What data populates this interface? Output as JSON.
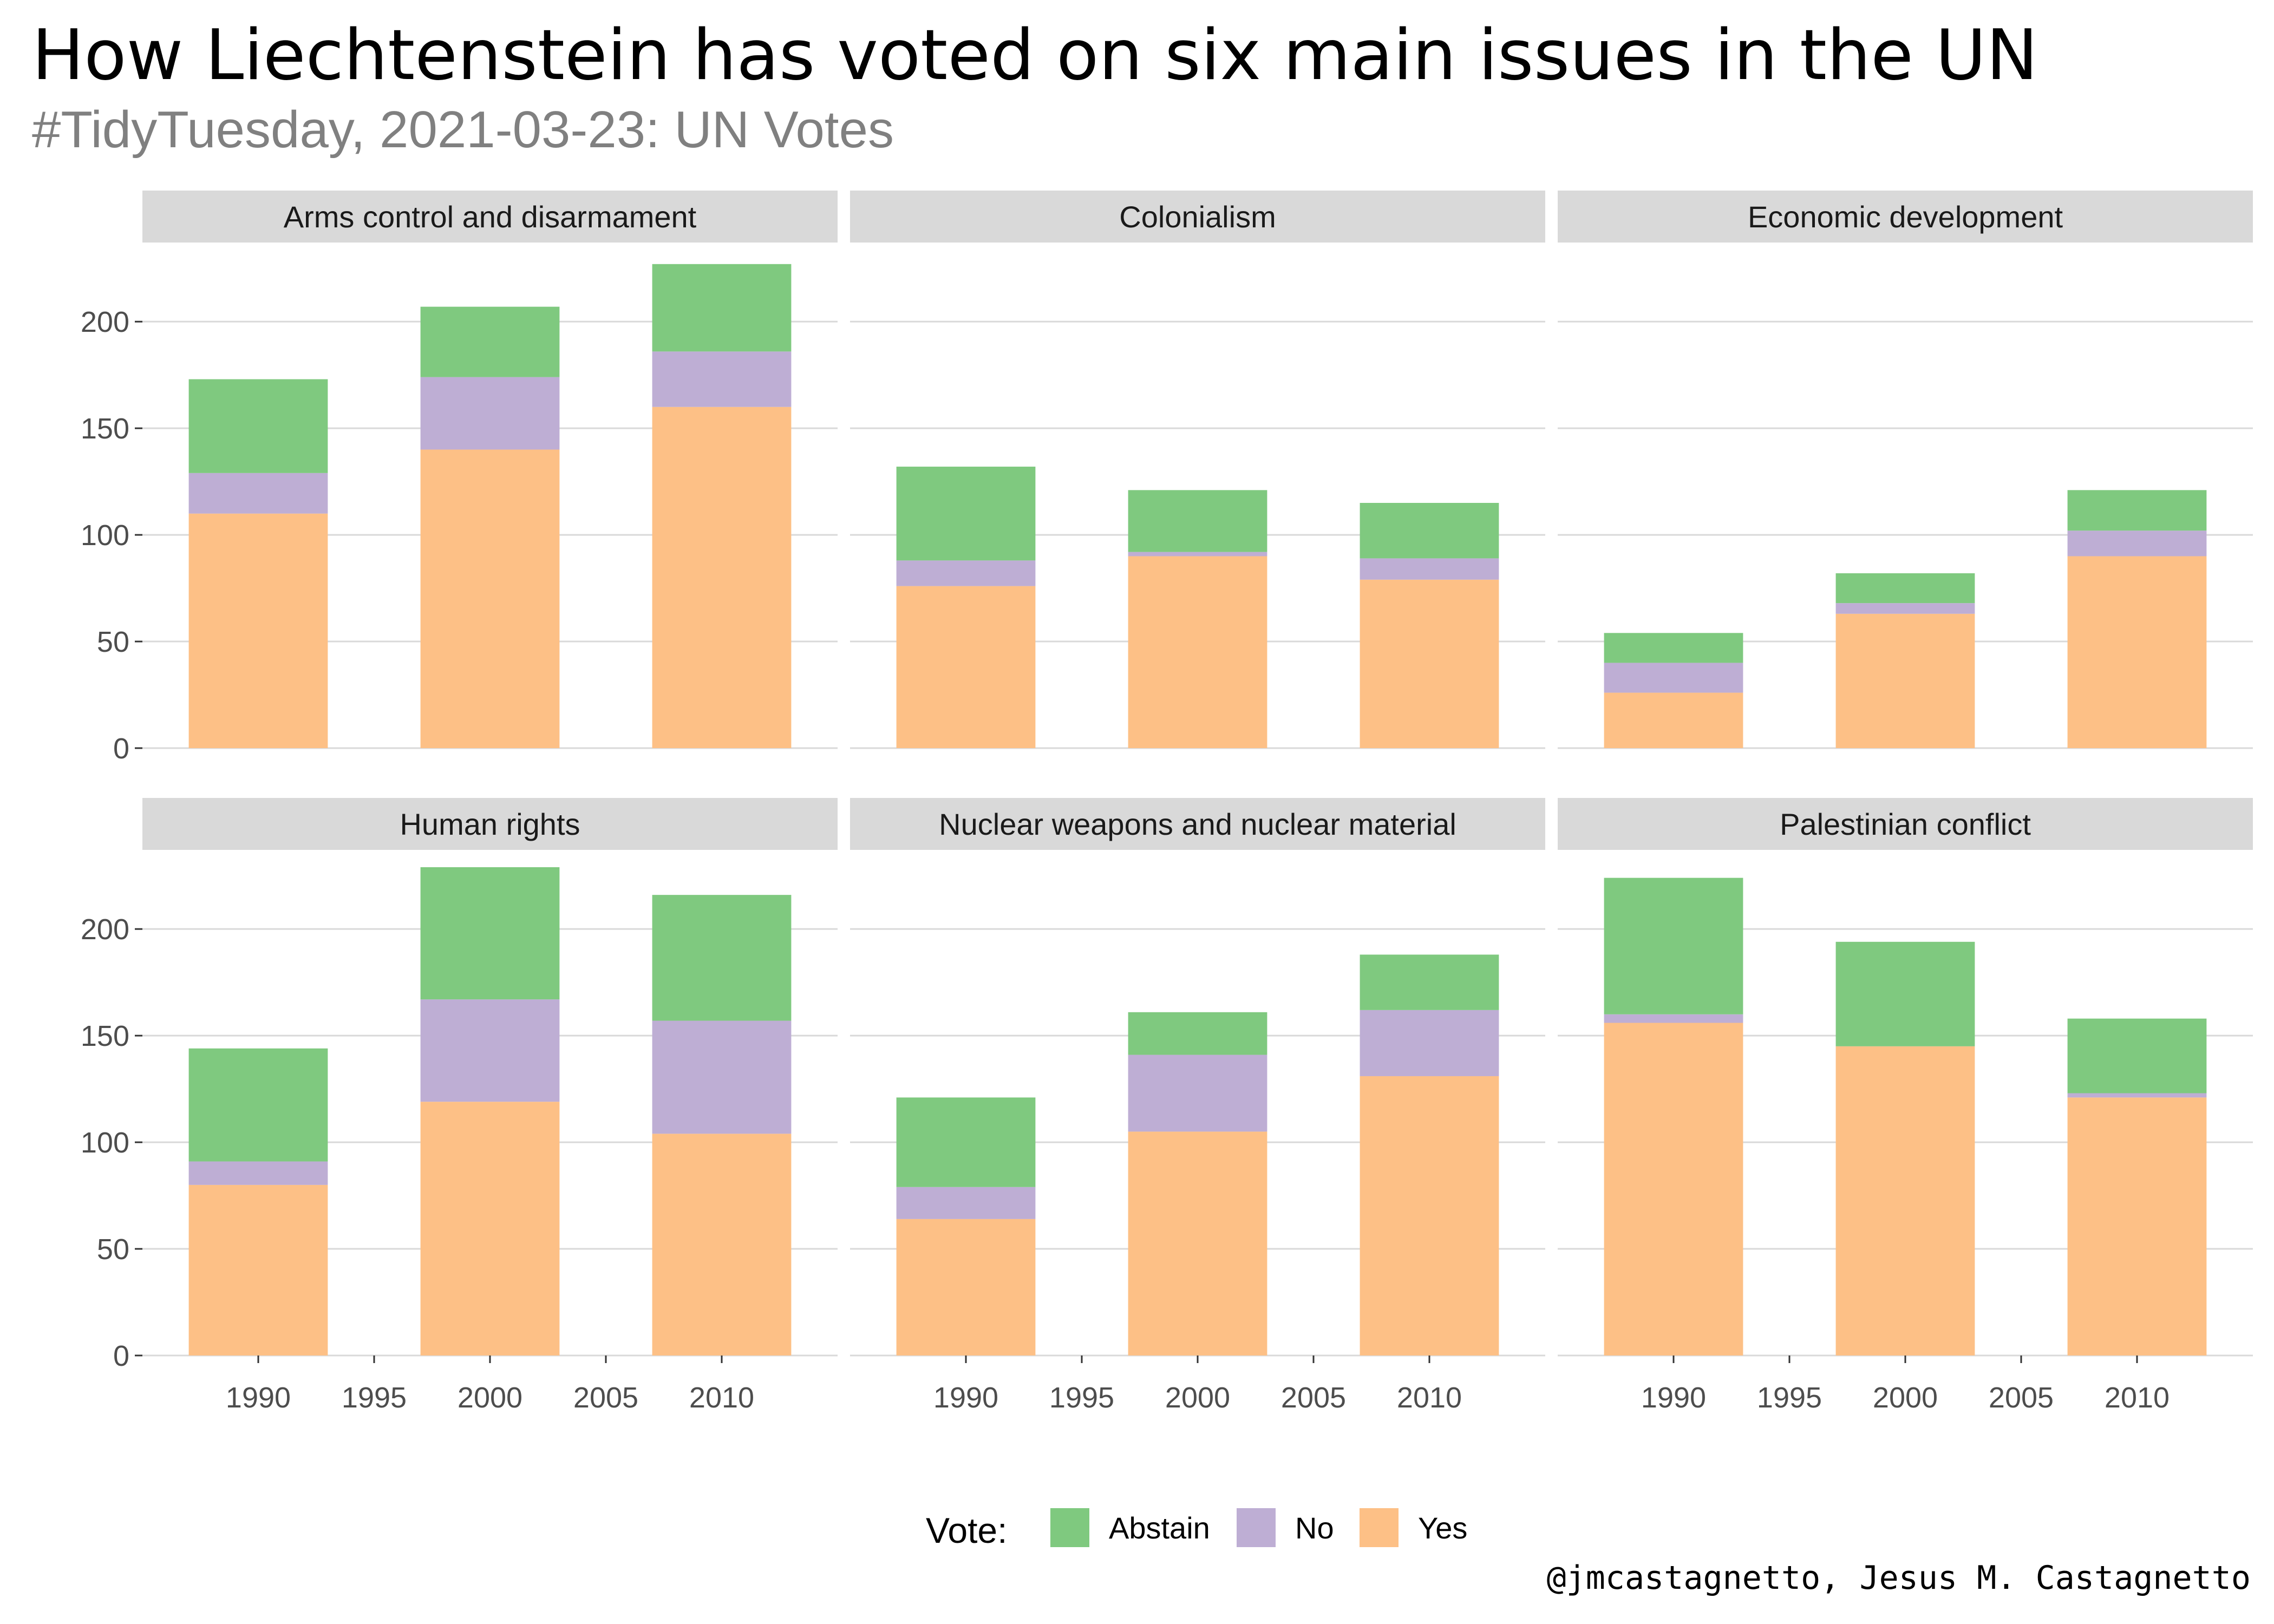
{
  "title": "How Liechtenstein has voted on six main issues in the UN",
  "subtitle": "#TidyTuesday, 2021-03-23: UN Votes",
  "caption": "@jmcastagnetto, Jesus M. Castagnetto",
  "colors": {
    "Abstain": "#7fc97f",
    "No": "#beaed4",
    "Yes": "#fdc086",
    "strip": "#d9d9d9",
    "grid": "#d9d9d9"
  },
  "chart_data": {
    "type": "bar",
    "stacked": true,
    "x_ticks": [
      1990,
      1995,
      2000,
      2005,
      2010
    ],
    "xlim": [
      1985,
      2015
    ],
    "ylim": [
      0,
      230
    ],
    "y_ticks": [
      0,
      50,
      100,
      150,
      200
    ],
    "legend": {
      "title": "Vote:",
      "position": "bottom",
      "entries": [
        "Abstain",
        "No",
        "Yes"
      ]
    },
    "grid": true,
    "panels": [
      {
        "title": "Arms control and disarmament",
        "x": [
          1990,
          2000,
          2010
        ],
        "series": [
          {
            "name": "Yes",
            "values": [
              110,
              140,
              160
            ]
          },
          {
            "name": "No",
            "values": [
              19,
              34,
              26
            ]
          },
          {
            "name": "Abstain",
            "values": [
              44,
              33,
              41
            ]
          }
        ]
      },
      {
        "title": "Colonialism",
        "x": [
          1990,
          2000,
          2010
        ],
        "series": [
          {
            "name": "Yes",
            "values": [
              76,
              90,
              79
            ]
          },
          {
            "name": "No",
            "values": [
              12,
              2,
              10
            ]
          },
          {
            "name": "Abstain",
            "values": [
              44,
              29,
              26
            ]
          }
        ]
      },
      {
        "title": "Economic development",
        "x": [
          1990,
          2000,
          2010
        ],
        "series": [
          {
            "name": "Yes",
            "values": [
              26,
              63,
              90
            ]
          },
          {
            "name": "No",
            "values": [
              14,
              5,
              12
            ]
          },
          {
            "name": "Abstain",
            "values": [
              14,
              14,
              19
            ]
          }
        ]
      },
      {
        "title": "Human rights",
        "x": [
          1990,
          2000,
          2010
        ],
        "series": [
          {
            "name": "Yes",
            "values": [
              80,
              119,
              104
            ]
          },
          {
            "name": "No",
            "values": [
              11,
              48,
              53
            ]
          },
          {
            "name": "Abstain",
            "values": [
              53,
              62,
              59
            ]
          }
        ]
      },
      {
        "title": "Nuclear weapons and nuclear material",
        "x": [
          1990,
          2000,
          2010
        ],
        "series": [
          {
            "name": "Yes",
            "values": [
              64,
              105,
              131
            ]
          },
          {
            "name": "No",
            "values": [
              15,
              36,
              31
            ]
          },
          {
            "name": "Abstain",
            "values": [
              42,
              20,
              26
            ]
          }
        ]
      },
      {
        "title": "Palestinian conflict",
        "x": [
          1990,
          2000,
          2010
        ],
        "series": [
          {
            "name": "Yes",
            "values": [
              156,
              145,
              121
            ]
          },
          {
            "name": "No",
            "values": [
              4,
              0,
              2
            ]
          },
          {
            "name": "Abstain",
            "values": [
              64,
              49,
              35
            ]
          }
        ]
      }
    ]
  }
}
